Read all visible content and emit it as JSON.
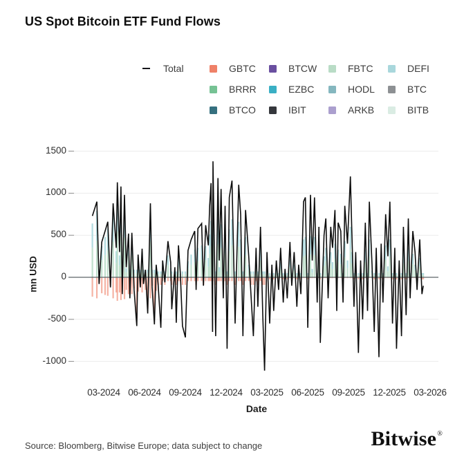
{
  "header": {
    "title": "US Spot Bitcoin ETF Fund Flows"
  },
  "footer": {
    "source": "Source: Bloomberg, Bitwise Europe; data subject to change",
    "brand": "Bitwise",
    "brand_mark": "®"
  },
  "chart_data": {
    "type": "combo",
    "subtype": "stacked-bars-with-line",
    "title": "US Spot Bitcoin ETF Fund Flows",
    "xlabel": "Date",
    "ylabel": "mn USD",
    "ylim": [
      -1250,
      1600
    ],
    "grid": true,
    "legend_position": "top",
    "y_ticks": [
      1500,
      1000,
      500,
      0,
      -500,
      -1000
    ],
    "x_ticks": [
      "03-2024",
      "06-2024",
      "09-2024",
      "12-2024",
      "03-2025",
      "06-2025",
      "09-2025",
      "12-2025",
      "03-2026"
    ],
    "line_series": {
      "name": "Total",
      "color": "#0d0d0d"
    },
    "etfs": [
      {
        "name": "GBTC",
        "color": "#ef8168"
      },
      {
        "name": "BRRR",
        "color": "#76c294"
      },
      {
        "name": "BTCO",
        "color": "#35707f"
      },
      {
        "name": "BTCW",
        "color": "#6a4fa0"
      },
      {
        "name": "EZBC",
        "color": "#3aafc4"
      },
      {
        "name": "IBIT",
        "color": "#35373c"
      },
      {
        "name": "FBTC",
        "color": "#b9dcc6"
      },
      {
        "name": "HODL",
        "color": "#85b7bf"
      },
      {
        "name": "ARKB",
        "color": "#ab9fce"
      },
      {
        "name": "DEFI",
        "color": "#a9d7dc"
      },
      {
        "name": "BTC",
        "color": "#8d9093"
      },
      {
        "name": "BITB",
        "color": "#daece3"
      }
    ],
    "columns": [
      "date",
      "total_mn_usd",
      "gbtc_mn_usd",
      "other_etfs_mn_usd"
    ],
    "rows": [
      [
        "2024-02-06",
        730,
        -230,
        640
      ],
      [
        "2024-02-16",
        900,
        -250,
        790
      ],
      [
        "2024-02-21",
        -80,
        -70,
        90
      ],
      [
        "2024-02-27",
        420,
        -190,
        370
      ],
      [
        "2024-03-04",
        550,
        -210,
        480
      ],
      [
        "2024-03-10",
        660,
        -220,
        580
      ],
      [
        "2024-03-16",
        -120,
        -100,
        90
      ],
      [
        "2024-03-22",
        880,
        -250,
        770
      ],
      [
        "2024-03-29",
        350,
        -180,
        310
      ],
      [
        "2024-04-01",
        1130,
        -280,
        990
      ],
      [
        "2024-04-06",
        300,
        -180,
        260
      ],
      [
        "2024-04-09",
        1080,
        -270,
        950
      ],
      [
        "2024-04-12",
        -200,
        -170,
        90
      ],
      [
        "2024-04-17",
        980,
        -260,
        860
      ],
      [
        "2024-04-21",
        120,
        -150,
        110
      ],
      [
        "2024-04-26",
        520,
        -200,
        460
      ],
      [
        "2024-04-29",
        -250,
        -210,
        90
      ],
      [
        "2024-05-03",
        530,
        -200,
        470
      ],
      [
        "2024-05-08",
        -150,
        -130,
        90
      ],
      [
        "2024-05-14",
        -580,
        -490,
        90
      ],
      [
        "2024-05-17",
        270,
        -170,
        240
      ],
      [
        "2024-05-22",
        -120,
        -100,
        90
      ],
      [
        "2024-05-26",
        340,
        -180,
        300
      ],
      [
        "2024-05-29",
        -80,
        -70,
        90
      ],
      [
        "2024-06-03",
        90,
        -150,
        80
      ],
      [
        "2024-06-08",
        -430,
        -370,
        90
      ],
      [
        "2024-06-14",
        880,
        -250,
        770
      ],
      [
        "2024-06-18",
        -120,
        -100,
        90
      ],
      [
        "2024-06-23",
        -560,
        -480,
        90
      ],
      [
        "2024-06-27",
        150,
        -160,
        130
      ],
      [
        "2024-07-01",
        -90,
        -90,
        70
      ],
      [
        "2024-07-07",
        -600,
        -90,
        70
      ],
      [
        "2024-07-11",
        200,
        -45,
        120
      ],
      [
        "2024-07-16",
        -60,
        -90,
        70
      ],
      [
        "2024-07-23",
        430,
        -45,
        260
      ],
      [
        "2024-07-29",
        180,
        -45,
        110
      ],
      [
        "2024-08-01",
        -380,
        -90,
        70
      ],
      [
        "2024-08-08",
        120,
        -45,
        70
      ],
      [
        "2024-08-11",
        -540,
        -90,
        70
      ],
      [
        "2024-08-16",
        380,
        -45,
        230
      ],
      [
        "2024-08-20",
        60,
        -45,
        40
      ],
      [
        "2024-08-25",
        -580,
        -90,
        70
      ],
      [
        "2024-09-01",
        -715,
        -90,
        70
      ],
      [
        "2024-09-07",
        320,
        -45,
        190
      ],
      [
        "2024-09-14",
        450,
        -45,
        270
      ],
      [
        "2024-09-22",
        550,
        -45,
        330
      ],
      [
        "2024-09-25",
        -150,
        -90,
        70
      ],
      [
        "2024-09-29",
        580,
        -45,
        350
      ],
      [
        "2024-10-07",
        640,
        -45,
        380
      ],
      [
        "2024-10-11",
        -100,
        -90,
        70
      ],
      [
        "2024-10-16",
        620,
        -45,
        370
      ],
      [
        "2024-10-22",
        380,
        -45,
        230
      ],
      [
        "2024-10-25",
        850,
        -45,
        510
      ],
      [
        "2024-10-28",
        1120,
        -45,
        670
      ],
      [
        "2024-11-01",
        -650,
        -90,
        70
      ],
      [
        "2024-11-02",
        1380,
        -45,
        830
      ],
      [
        "2024-11-08",
        -700,
        -90,
        70
      ],
      [
        "2024-11-13",
        1180,
        -45,
        710
      ],
      [
        "2024-11-16",
        200,
        -45,
        120
      ],
      [
        "2024-11-20",
        1050,
        -45,
        630
      ],
      [
        "2024-11-25",
        -250,
        -90,
        70
      ],
      [
        "2024-11-29",
        850,
        -45,
        510
      ],
      [
        "2024-12-03",
        -850,
        -90,
        70
      ],
      [
        "2024-12-08",
        950,
        -45,
        570
      ],
      [
        "2024-12-14",
        1150,
        -45,
        690
      ],
      [
        "2024-12-21",
        -550,
        -90,
        70
      ],
      [
        "2024-12-29",
        1100,
        -45,
        660
      ],
      [
        "2025-01-03",
        750,
        -45,
        450
      ],
      [
        "2025-01-08",
        -700,
        -90,
        70
      ],
      [
        "2025-01-14",
        800,
        -45,
        480
      ],
      [
        "2025-01-21",
        250,
        -45,
        150
      ],
      [
        "2025-01-26",
        -200,
        -90,
        70
      ],
      [
        "2025-02-01",
        -700,
        -90,
        70
      ],
      [
        "2025-02-07",
        350,
        -45,
        210
      ],
      [
        "2025-02-11",
        -350,
        -90,
        70
      ],
      [
        "2025-02-17",
        600,
        -45,
        360
      ],
      [
        "2025-02-22",
        -450,
        -90,
        70
      ],
      [
        "2025-02-26",
        -1110,
        -90,
        70
      ],
      [
        "2025-03-01",
        300,
        -10,
        150
      ],
      [
        "2025-03-07",
        -550,
        -25,
        50
      ],
      [
        "2025-03-12",
        150,
        -10,
        80
      ],
      [
        "2025-03-16",
        -400,
        -25,
        50
      ],
      [
        "2025-03-22",
        200,
        -10,
        100
      ],
      [
        "2025-03-27",
        -150,
        -25,
        50
      ],
      [
        "2025-04-01",
        350,
        -10,
        180
      ],
      [
        "2025-04-07",
        -300,
        -25,
        50
      ],
      [
        "2025-04-11",
        100,
        -10,
        50
      ],
      [
        "2025-04-16",
        -250,
        -25,
        50
      ],
      [
        "2025-04-22",
        420,
        -10,
        210
      ],
      [
        "2025-04-26",
        -100,
        -25,
        50
      ],
      [
        "2025-05-01",
        300,
        -10,
        150
      ],
      [
        "2025-05-07",
        -350,
        -25,
        50
      ],
      [
        "2025-05-11",
        150,
        -10,
        80
      ],
      [
        "2025-05-16",
        -200,
        -25,
        50
      ],
      [
        "2025-05-22",
        900,
        -10,
        450
      ],
      [
        "2025-05-26",
        950,
        -10,
        480
      ],
      [
        "2025-06-01",
        -600,
        -25,
        50
      ],
      [
        "2025-06-07",
        980,
        -10,
        490
      ],
      [
        "2025-06-11",
        200,
        -10,
        100
      ],
      [
        "2025-06-16",
        950,
        -10,
        480
      ],
      [
        "2025-06-22",
        -300,
        -25,
        50
      ],
      [
        "2025-06-26",
        600,
        -10,
        300
      ],
      [
        "2025-06-29",
        -780,
        -25,
        50
      ],
      [
        "2025-07-07",
        500,
        -10,
        250
      ],
      [
        "2025-07-11",
        700,
        -10,
        350
      ],
      [
        "2025-07-16",
        -250,
        -25,
        50
      ],
      [
        "2025-07-22",
        600,
        -10,
        300
      ],
      [
        "2025-07-26",
        350,
        -10,
        180
      ],
      [
        "2025-08-01",
        800,
        -10,
        400
      ],
      [
        "2025-08-05",
        -400,
        -25,
        50
      ],
      [
        "2025-08-08",
        650,
        -10,
        330
      ],
      [
        "2025-08-14",
        550,
        -10,
        280
      ],
      [
        "2025-08-19",
        -300,
        -25,
        50
      ],
      [
        "2025-08-23",
        850,
        -10,
        430
      ],
      [
        "2025-08-29",
        400,
        -10,
        200
      ],
      [
        "2025-09-05",
        1200,
        -10,
        600
      ],
      [
        "2025-09-08",
        600,
        -10,
        300
      ],
      [
        "2025-09-13",
        -350,
        -25,
        50
      ],
      [
        "2025-09-17",
        300,
        -10,
        150
      ],
      [
        "2025-09-23",
        -900,
        -25,
        50
      ],
      [
        "2025-09-28",
        200,
        -10,
        100
      ],
      [
        "2025-10-02",
        -500,
        -25,
        50
      ],
      [
        "2025-10-08",
        650,
        -10,
        330
      ],
      [
        "2025-10-13",
        -400,
        -25,
        50
      ],
      [
        "2025-10-17",
        900,
        -10,
        450
      ],
      [
        "2025-10-23",
        150,
        -10,
        80
      ],
      [
        "2025-10-28",
        -650,
        -25,
        50
      ],
      [
        "2025-11-02",
        350,
        -10,
        180
      ],
      [
        "2025-11-08",
        -950,
        -25,
        50
      ],
      [
        "2025-11-13",
        400,
        -10,
        200
      ],
      [
        "2025-11-17",
        -300,
        -25,
        50
      ],
      [
        "2025-11-23",
        750,
        -10,
        380
      ],
      [
        "2025-11-28",
        250,
        -10,
        130
      ],
      [
        "2025-12-02",
        900,
        -10,
        450
      ],
      [
        "2025-12-08",
        -550,
        -25,
        50
      ],
      [
        "2025-12-13",
        350,
        -10,
        180
      ],
      [
        "2025-12-17",
        -850,
        -25,
        50
      ],
      [
        "2025-12-23",
        200,
        -10,
        100
      ],
      [
        "2025-12-28",
        -700,
        -25,
        50
      ],
      [
        "2026-01-02",
        600,
        -10,
        300
      ],
      [
        "2026-01-08",
        -450,
        -25,
        50
      ],
      [
        "2026-01-13",
        700,
        -10,
        350
      ],
      [
        "2026-01-17",
        -250,
        -25,
        50
      ],
      [
        "2026-01-23",
        550,
        -10,
        280
      ],
      [
        "2026-01-28",
        300,
        -10,
        150
      ],
      [
        "2026-02-02",
        -150,
        -25,
        50
      ],
      [
        "2026-02-08",
        450,
        -10,
        230
      ],
      [
        "2026-02-13",
        -200,
        -25,
        50
      ],
      [
        "2026-02-16",
        -100,
        -25,
        50
      ]
    ]
  }
}
